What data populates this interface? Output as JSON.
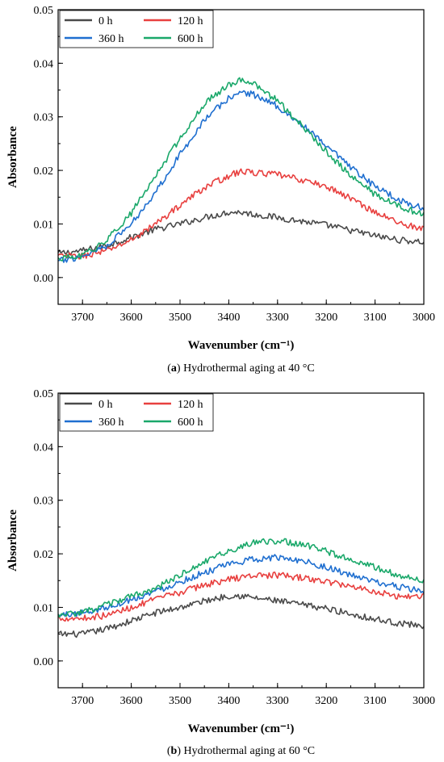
{
  "colors": {
    "0 h": "#4a4a4a",
    "120 h": "#e8403f",
    "360 h": "#1f6fd0",
    "600 h": "#1aa86a"
  },
  "chart_data": [
    {
      "type": "line",
      "caption_letter": "a",
      "caption_text": ") Hydrothermal aging at 40 °C",
      "xlabel": "Wavenumber (cm⁻¹)",
      "ylabel": "Absorbance",
      "xlim": [
        3750,
        3000
      ],
      "ylim": [
        -0.005,
        0.05
      ],
      "x_ticks": [
        3700,
        3600,
        3500,
        3400,
        3300,
        3200,
        3100,
        3000
      ],
      "y_ticks": [
        0.0,
        0.01,
        0.02,
        0.03,
        0.04,
        0.05
      ],
      "y_tick_labels": [
        "0.00",
        "0.01",
        "0.02",
        "0.03",
        "0.04",
        "0.05"
      ],
      "legend_position": "top-left",
      "series": [
        {
          "name": "0 h",
          "points": [
            [
              3750,
              0.0045
            ],
            [
              3700,
              0.005
            ],
            [
              3650,
              0.006
            ],
            [
              3600,
              0.0075
            ],
            [
              3550,
              0.009
            ],
            [
              3500,
              0.01
            ],
            [
              3450,
              0.0112
            ],
            [
              3400,
              0.0122
            ],
            [
              3375,
              0.0122
            ],
            [
              3350,
              0.0118
            ],
            [
              3300,
              0.0112
            ],
            [
              3250,
              0.0105
            ],
            [
              3200,
              0.0098
            ],
            [
              3150,
              0.0088
            ],
            [
              3100,
              0.0078
            ],
            [
              3050,
              0.007
            ],
            [
              3000,
              0.0066
            ]
          ]
        },
        {
          "name": "120 h",
          "points": [
            [
              3750,
              0.004
            ],
            [
              3700,
              0.004
            ],
            [
              3650,
              0.005
            ],
            [
              3600,
              0.007
            ],
            [
              3550,
              0.01
            ],
            [
              3500,
              0.0135
            ],
            [
              3450,
              0.0168
            ],
            [
              3400,
              0.019
            ],
            [
              3375,
              0.0198
            ],
            [
              3350,
              0.0196
            ],
            [
              3300,
              0.0192
            ],
            [
              3250,
              0.0182
            ],
            [
              3200,
              0.017
            ],
            [
              3150,
              0.0148
            ],
            [
              3100,
              0.0122
            ],
            [
              3050,
              0.0102
            ],
            [
              3000,
              0.009
            ]
          ]
        },
        {
          "name": "360 h",
          "points": [
            [
              3750,
              0.003
            ],
            [
              3700,
              0.004
            ],
            [
              3650,
              0.006
            ],
            [
              3600,
              0.01
            ],
            [
              3550,
              0.016
            ],
            [
              3500,
              0.023
            ],
            [
              3450,
              0.0295
            ],
            [
              3400,
              0.0335
            ],
            [
              3375,
              0.0346
            ],
            [
              3350,
              0.0342
            ],
            [
              3300,
              0.032
            ],
            [
              3250,
              0.0285
            ],
            [
              3200,
              0.0245
            ],
            [
              3150,
              0.0205
            ],
            [
              3100,
              0.017
            ],
            [
              3050,
              0.0145
            ],
            [
              3000,
              0.0128
            ]
          ]
        },
        {
          "name": "600 h",
          "points": [
            [
              3750,
              0.0035
            ],
            [
              3700,
              0.004
            ],
            [
              3650,
              0.007
            ],
            [
              3600,
              0.012
            ],
            [
              3550,
              0.019
            ],
            [
              3500,
              0.026
            ],
            [
              3450,
              0.0325
            ],
            [
              3400,
              0.036
            ],
            [
              3375,
              0.037
            ],
            [
              3350,
              0.0362
            ],
            [
              3300,
              0.033
            ],
            [
              3250,
              0.0283
            ],
            [
              3200,
              0.0235
            ],
            [
              3150,
              0.019
            ],
            [
              3100,
              0.0155
            ],
            [
              3050,
              0.0132
            ],
            [
              3000,
              0.0118
            ]
          ]
        }
      ]
    },
    {
      "type": "line",
      "caption_letter": "b",
      "caption_text": ") Hydrothermal aging at 60 °C",
      "xlabel": "Wavenumber (cm⁻¹)",
      "ylabel": "Absorbance",
      "xlim": [
        3750,
        3000
      ],
      "ylim": [
        -0.005,
        0.05
      ],
      "x_ticks": [
        3700,
        3600,
        3500,
        3400,
        3300,
        3200,
        3100,
        3000
      ],
      "y_ticks": [
        0.0,
        0.01,
        0.02,
        0.03,
        0.04,
        0.05
      ],
      "y_tick_labels": [
        "0.00",
        "0.01",
        "0.02",
        "0.03",
        "0.04",
        "0.05"
      ],
      "legend_position": "top-left",
      "series": [
        {
          "name": "0 h",
          "points": [
            [
              3750,
              0.005
            ],
            [
              3700,
              0.005
            ],
            [
              3650,
              0.006
            ],
            [
              3600,
              0.0075
            ],
            [
              3550,
              0.009
            ],
            [
              3500,
              0.01
            ],
            [
              3450,
              0.0112
            ],
            [
              3400,
              0.0122
            ],
            [
              3375,
              0.0122
            ],
            [
              3350,
              0.0118
            ],
            [
              3300,
              0.0112
            ],
            [
              3250,
              0.0105
            ],
            [
              3200,
              0.0098
            ],
            [
              3150,
              0.0088
            ],
            [
              3100,
              0.0078
            ],
            [
              3050,
              0.007
            ],
            [
              3000,
              0.0066
            ]
          ]
        },
        {
          "name": "120 h",
          "points": [
            [
              3750,
              0.008
            ],
            [
              3700,
              0.008
            ],
            [
              3650,
              0.0085
            ],
            [
              3600,
              0.01
            ],
            [
              3550,
              0.0115
            ],
            [
              3500,
              0.0128
            ],
            [
              3450,
              0.0142
            ],
            [
              3400,
              0.0152
            ],
            [
              3350,
              0.016
            ],
            [
              3300,
              0.016
            ],
            [
              3250,
              0.0155
            ],
            [
              3200,
              0.0148
            ],
            [
              3150,
              0.014
            ],
            [
              3100,
              0.013
            ],
            [
              3050,
              0.012
            ],
            [
              3000,
              0.0122
            ]
          ]
        },
        {
          "name": "360 h",
          "points": [
            [
              3750,
              0.0085
            ],
            [
              3700,
              0.009
            ],
            [
              3650,
              0.01
            ],
            [
              3600,
              0.0115
            ],
            [
              3550,
              0.013
            ],
            [
              3500,
              0.0148
            ],
            [
              3450,
              0.0165
            ],
            [
              3400,
              0.018
            ],
            [
              3350,
              0.019
            ],
            [
              3300,
              0.0193
            ],
            [
              3250,
              0.0188
            ],
            [
              3200,
              0.0175
            ],
            [
              3150,
              0.016
            ],
            [
              3100,
              0.0147
            ],
            [
              3050,
              0.0138
            ],
            [
              3000,
              0.013
            ]
          ]
        },
        {
          "name": "600 h",
          "points": [
            [
              3750,
              0.0085
            ],
            [
              3700,
              0.009
            ],
            [
              3650,
              0.0105
            ],
            [
              3600,
              0.012
            ],
            [
              3550,
              0.0135
            ],
            [
              3500,
              0.016
            ],
            [
              3450,
              0.0185
            ],
            [
              3400,
              0.0205
            ],
            [
              3350,
              0.022
            ],
            [
              3300,
              0.0225
            ],
            [
              3250,
              0.0218
            ],
            [
              3200,
              0.0205
            ],
            [
              3150,
              0.019
            ],
            [
              3100,
              0.0175
            ],
            [
              3050,
              0.016
            ],
            [
              3000,
              0.015
            ]
          ]
        }
      ]
    }
  ]
}
